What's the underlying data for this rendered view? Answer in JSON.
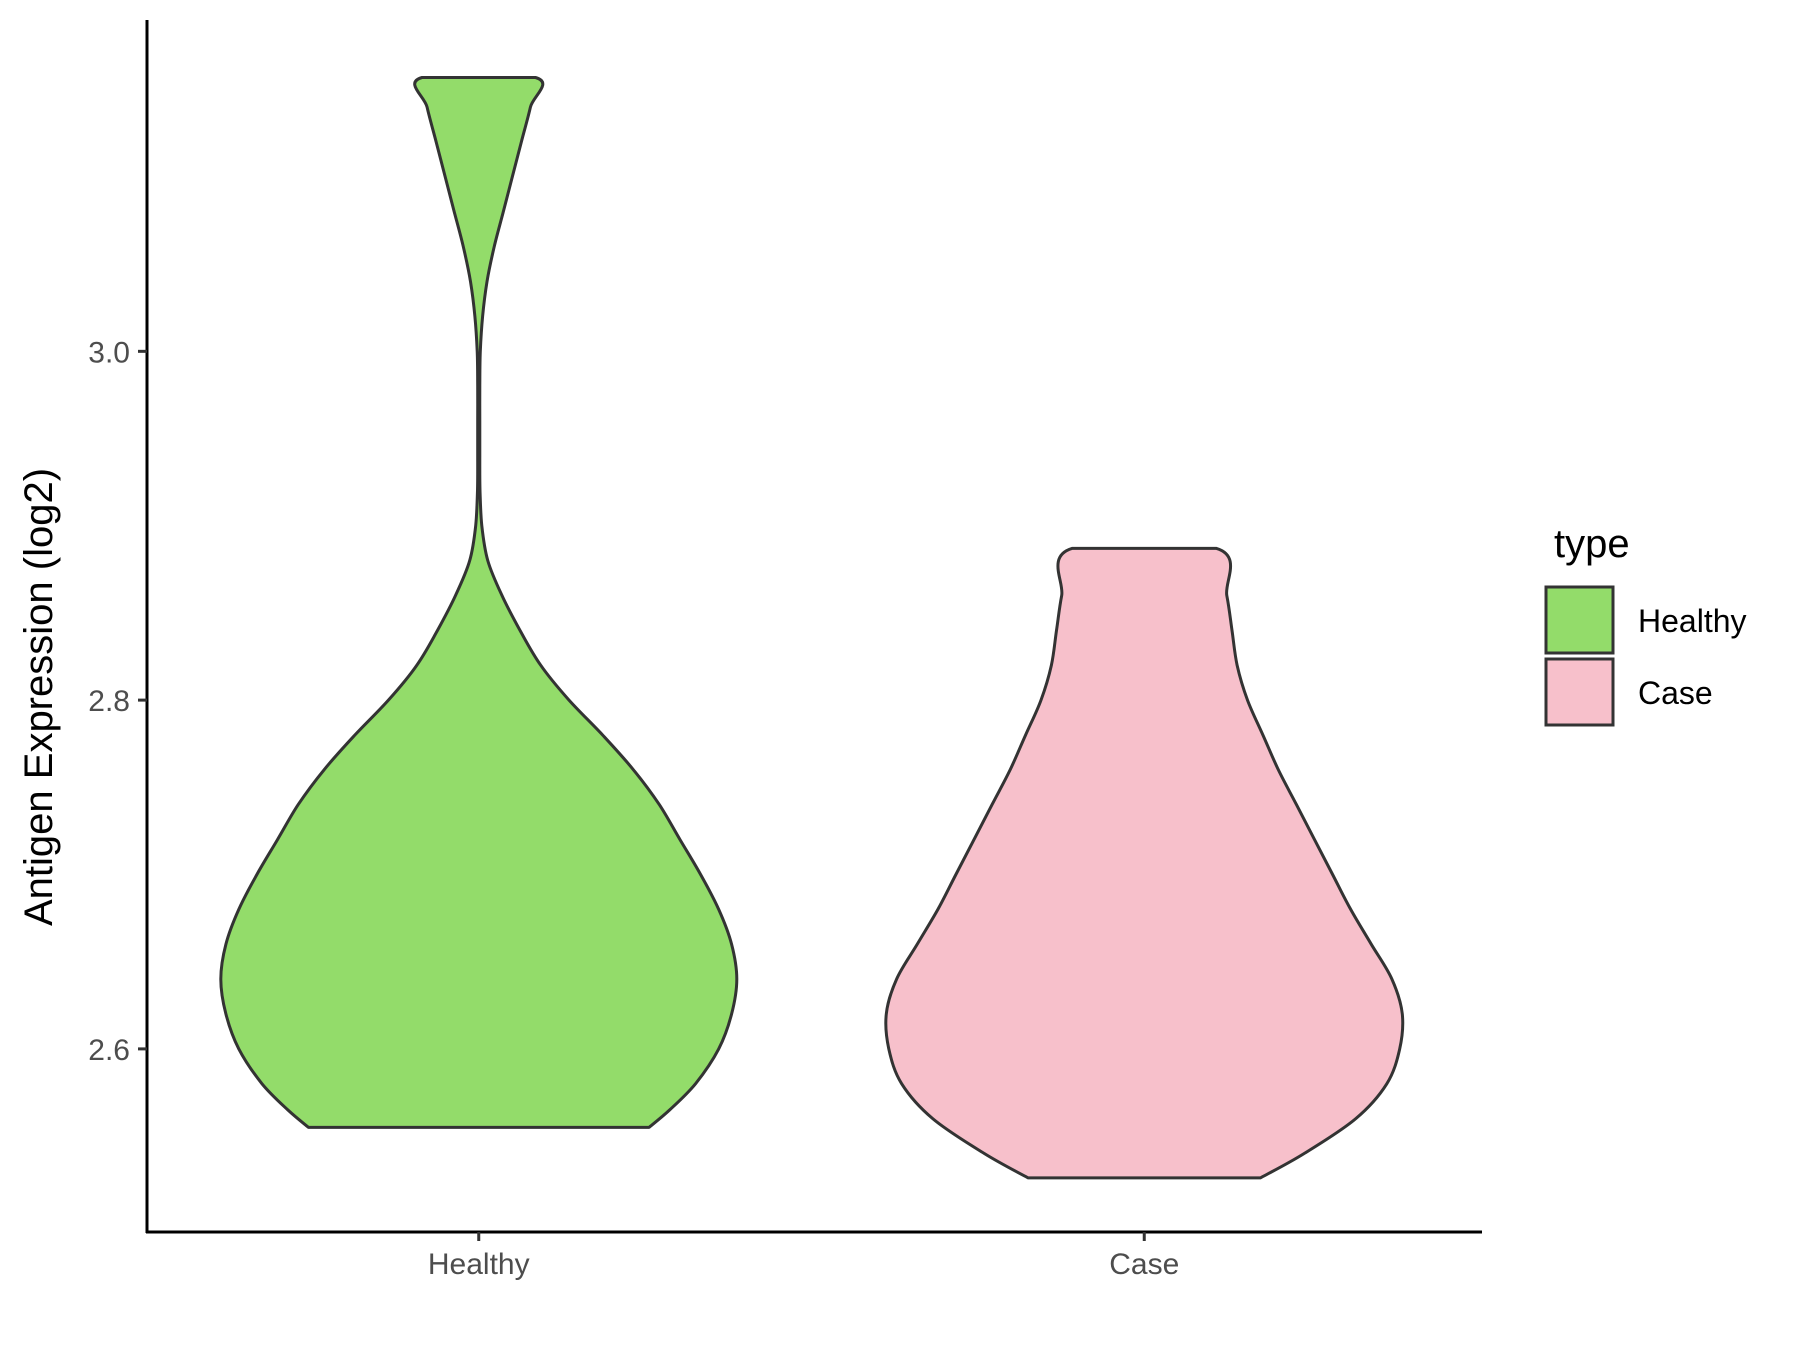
{
  "chart_data": {
    "type": "violin",
    "title": "",
    "xlabel": "",
    "ylabel": "Antigen Expression (log2)",
    "categories": [
      "Healthy",
      "Case"
    ],
    "ylim": [
      2.495,
      3.19
    ],
    "yticks": [
      2.6,
      2.8,
      3.0
    ],
    "ytick_labels": [
      "2.6",
      "2.8",
      "3.0"
    ],
    "grid": false,
    "legend": {
      "title": "type",
      "position": "right",
      "entries": [
        "Healthy",
        "Case"
      ]
    },
    "colors": {
      "Healthy": "#93dc6a",
      "Case": "#f7c0cb",
      "outline": "#333333",
      "axis": "#000000"
    },
    "series": [
      {
        "category": "Healthy",
        "min": 2.555,
        "max": 3.157,
        "density_profile": [
          [
            2.555,
            0.66
          ],
          [
            2.565,
            0.74
          ],
          [
            2.58,
            0.84
          ],
          [
            2.6,
            0.93
          ],
          [
            2.62,
            0.98
          ],
          [
            2.64,
            1.0
          ],
          [
            2.66,
            0.98
          ],
          [
            2.68,
            0.93
          ],
          [
            2.7,
            0.86
          ],
          [
            2.72,
            0.78
          ],
          [
            2.74,
            0.7
          ],
          [
            2.76,
            0.6
          ],
          [
            2.78,
            0.48
          ],
          [
            2.8,
            0.35
          ],
          [
            2.82,
            0.24
          ],
          [
            2.84,
            0.16
          ],
          [
            2.86,
            0.09
          ],
          [
            2.88,
            0.035
          ],
          [
            2.9,
            0.012
          ],
          [
            2.92,
            0.005
          ],
          [
            2.94,
            0.004
          ],
          [
            2.96,
            0.004
          ],
          [
            2.98,
            0.004
          ],
          [
            3.0,
            0.006
          ],
          [
            3.02,
            0.015
          ],
          [
            3.04,
            0.032
          ],
          [
            3.06,
            0.06
          ],
          [
            3.08,
            0.095
          ],
          [
            3.1,
            0.13
          ],
          [
            3.12,
            0.165
          ],
          [
            3.14,
            0.2
          ],
          [
            3.157,
            0.22
          ]
        ]
      },
      {
        "category": "Case",
        "min": 2.526,
        "max": 2.887,
        "density_profile": [
          [
            2.526,
            0.45
          ],
          [
            2.54,
            0.62
          ],
          [
            2.56,
            0.82
          ],
          [
            2.58,
            0.94
          ],
          [
            2.6,
            0.99
          ],
          [
            2.62,
            1.0
          ],
          [
            2.64,
            0.96
          ],
          [
            2.66,
            0.88
          ],
          [
            2.68,
            0.8
          ],
          [
            2.7,
            0.73
          ],
          [
            2.72,
            0.66
          ],
          [
            2.74,
            0.59
          ],
          [
            2.76,
            0.52
          ],
          [
            2.78,
            0.46
          ],
          [
            2.8,
            0.4
          ],
          [
            2.82,
            0.36
          ],
          [
            2.84,
            0.34
          ],
          [
            2.86,
            0.32
          ],
          [
            2.887,
            0.28
          ]
        ]
      }
    ]
  }
}
